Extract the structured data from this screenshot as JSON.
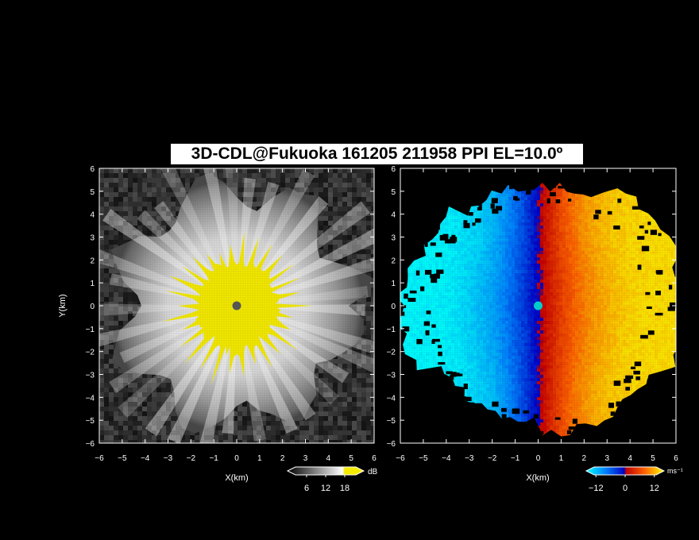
{
  "figure": {
    "title": "3D-CDL@Fukuoka 161205 211958 PPI EL=10.0º"
  },
  "chart_data": [
    {
      "type": "heatmap",
      "panel": "left",
      "field": "reflectivity / SNR",
      "xlabel": "X(km)",
      "ylabel": "Y(km)",
      "xlim": [
        -6,
        6
      ],
      "ylim": [
        -6,
        6
      ],
      "xticks": [
        -6,
        -5,
        -4,
        -3,
        -2,
        -1,
        0,
        1,
        2,
        3,
        4,
        5,
        6
      ],
      "yticks": [
        -6,
        -5,
        -4,
        -3,
        -2,
        -1,
        0,
        1,
        2,
        3,
        4,
        5,
        6
      ],
      "colorbar": {
        "unit": "dB",
        "ticks": [
          6,
          12,
          18
        ],
        "range": [
          0,
          24
        ],
        "scheme": "grayscale, saturated yellow above 18",
        "saturation_color": "#f5eb00"
      },
      "approx_echo_radius_km": 5.5,
      "saturated_core_radius_km": 2.0,
      "center_marker_color": "#555555"
    },
    {
      "type": "heatmap",
      "panel": "right",
      "field": "Doppler velocity",
      "xlabel": "X(km)",
      "ylabel": "",
      "xlim": [
        -6,
        6
      ],
      "ylim": [
        -6,
        6
      ],
      "xticks": [
        -6,
        -5,
        -4,
        -3,
        -2,
        -1,
        0,
        1,
        2,
        3,
        4,
        5,
        6
      ],
      "yticks": [
        -6,
        -5,
        -4,
        -3,
        -2,
        -1,
        0,
        1,
        2,
        3,
        4,
        5,
        6
      ],
      "colorbar": {
        "unit": "ms⁻¹",
        "ticks": [
          -12,
          0,
          12
        ],
        "range": [
          -16,
          16
        ],
        "scheme": "cyan-blue (negative) to red-yellow (positive)"
      },
      "pattern": "negative velocities west of x≈0, positive east; zero line near x=0",
      "min_velocity_approx": -14,
      "max_velocity_approx": 14,
      "center_marker_color": "#00cccc"
    }
  ]
}
